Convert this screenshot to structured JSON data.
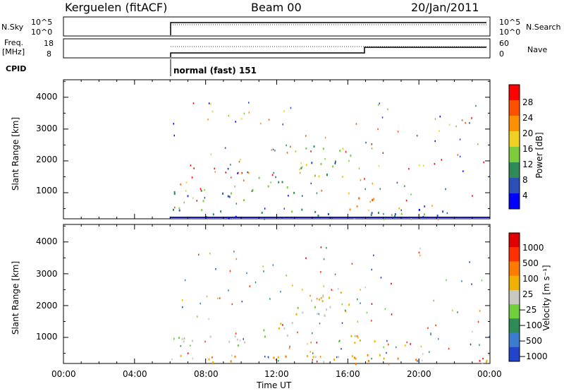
{
  "header": {
    "station": "Kerguelen (fitACF)",
    "beam": "Beam 00",
    "date": "20/Jan/2011"
  },
  "status_panel": {
    "nsky_label": "N.Sky",
    "nsky_tick_top": "10^5",
    "nsky_tick_bottom": "10^0",
    "nsearch_label": "N.Search",
    "nsearch_tick_top": "10^5",
    "nsearch_tick_bottom": "10^0",
    "freq_label": "Freq.",
    "freq_unit": "[MHz]",
    "freq_tick_top": "18",
    "freq_tick_bottom": "8",
    "nave_label": "Nave",
    "nave_tick_top": "60",
    "nave_tick_bottom": "0",
    "cpid_label": "CPID",
    "cpid_value": "normal (fast) 151"
  },
  "chart_data": [
    {
      "type": "heatmap",
      "name": "power",
      "ylabel": "Slant Range [km]",
      "xlabel": "Time UT",
      "x_ticks": [
        "00:00",
        "04:00",
        "08:00",
        "12:00",
        "16:00",
        "20:00",
        "00:00"
      ],
      "xlim_hours": [
        0,
        24
      ],
      "y_ticks": [
        "1000",
        "2000",
        "3000",
        "4000"
      ],
      "ylim_km": [
        180,
        4550
      ],
      "data_start_hour": 6,
      "colorbar": {
        "label": "Power [dB]",
        "ticks": [
          "4",
          "8",
          "12",
          "16",
          "20",
          "24",
          "28"
        ],
        "range": [
          0,
          30
        ],
        "colors": [
          "#0000ff",
          "#2a50b8",
          "#2e8b57",
          "#7ccd3c",
          "#f0d020",
          "#ff9000",
          "#ff5000",
          "#ff0000"
        ]
      },
      "features": [
        {
          "t0": 6,
          "t1": 10.5,
          "r0": 700,
          "r1": 1100,
          "level": 8
        },
        {
          "t0": 10.5,
          "t1": 13,
          "r0": 1000,
          "r1": 1500,
          "level": 10
        },
        {
          "t0": 13,
          "t1": 16.2,
          "r0": 1500,
          "r1": 2500,
          "level": 12
        },
        {
          "t0": 16,
          "t1": 17.5,
          "r0": 400,
          "r1": 1100,
          "level": 22
        },
        {
          "t0": 6,
          "t1": 24,
          "r0": 200,
          "r1": 500,
          "level": 6
        }
      ]
    },
    {
      "type": "heatmap",
      "name": "velocity",
      "ylabel": "Slant Range [km]",
      "xlabel": "Time UT",
      "x_ticks": [
        "00:00",
        "04:00",
        "08:00",
        "12:00",
        "16:00",
        "20:00",
        "00:00"
      ],
      "xlim_hours": [
        0,
        24
      ],
      "y_ticks": [
        "1000",
        "2000",
        "3000",
        "4000"
      ],
      "ylim_km": [
        180,
        4550
      ],
      "data_start_hour": 6,
      "colorbar": {
        "label": "Velocity [m s⁻¹]",
        "ticks": [
          "1000",
          "500",
          "100",
          "25",
          "−25",
          "−100",
          "−500",
          "−1000"
        ],
        "colors": [
          "#2244cc",
          "#3b7bd0",
          "#2e8b57",
          "#6fcf3c",
          "#c8c8c0",
          "#f0b000",
          "#ff7a00",
          "#ff3000",
          "#e00000"
        ]
      },
      "features": [
        {
          "t0": 6,
          "t1": 10.5,
          "r0": 700,
          "r1": 1100,
          "level": 4
        },
        {
          "t0": 10.5,
          "t1": 13,
          "r0": 1000,
          "r1": 1500,
          "level": 4
        },
        {
          "t0": 13,
          "t1": 16.2,
          "r0": 1500,
          "r1": 2500,
          "level": 4
        },
        {
          "t0": 16,
          "t1": 17.5,
          "r0": 400,
          "r1": 1100,
          "level": 5
        },
        {
          "t0": 6,
          "t1": 24,
          "r0": 200,
          "r1": 500,
          "level": 5
        }
      ]
    }
  ]
}
